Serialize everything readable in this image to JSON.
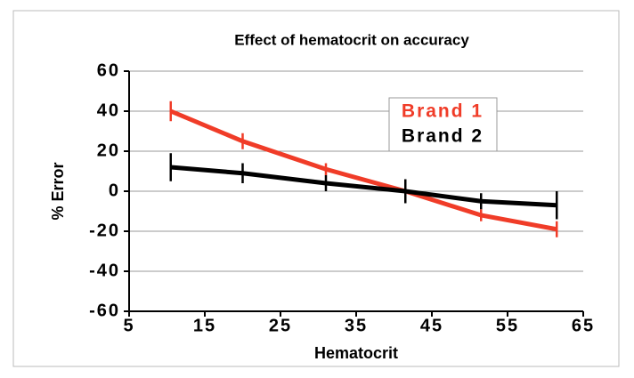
{
  "chart_data": {
    "type": "line",
    "title": "Effect of hematocrit on accuracy",
    "x_label": "Hematocrit",
    "y_label": "% Error",
    "xlim": [
      5,
      65
    ],
    "xticks": [
      5,
      15,
      25,
      35,
      45,
      55,
      65
    ],
    "ylim": [
      -60,
      60
    ],
    "yticks": [
      -60,
      -40,
      -20,
      0,
      20,
      40,
      60
    ],
    "grid": true,
    "legend": "upper right",
    "series": [
      {
        "name": "Brand 1",
        "color": "#f03c28",
        "x": [
          10.5,
          20,
          31,
          41.5,
          51.5,
          61.5
        ],
        "values": [
          40,
          25,
          11,
          0,
          -12,
          -19
        ],
        "errors": [
          5,
          4,
          3,
          5,
          3,
          4
        ]
      },
      {
        "name": "Brand 2",
        "color": "#000000",
        "x": [
          10.5,
          20,
          31,
          41.5,
          51.5,
          61.5
        ],
        "values": [
          12,
          9,
          4,
          0,
          -5,
          -7
        ],
        "errors": [
          7,
          5,
          4,
          6,
          4,
          7
        ]
      }
    ]
  }
}
